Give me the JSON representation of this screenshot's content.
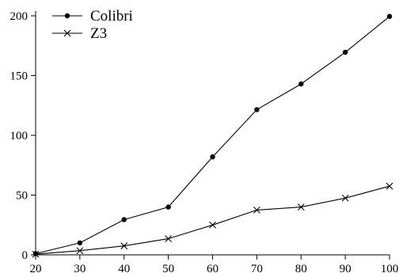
{
  "chart_data": {
    "type": "line",
    "x": [
      20,
      30,
      40,
      50,
      60,
      70,
      80,
      90,
      100
    ],
    "xlim": [
      20,
      100
    ],
    "ylim": [
      0,
      200
    ],
    "xticks": [
      20,
      30,
      40,
      50,
      60,
      70,
      80,
      90,
      100
    ],
    "yticks": [
      0,
      50,
      100,
      150,
      200
    ],
    "grid": false,
    "legend_position": "top-left",
    "series": [
      {
        "name": "Colibri",
        "marker": "dot",
        "color": "#000000",
        "values": [
          1,
          10,
          29.5,
          40,
          82,
          121.5,
          143,
          169.5,
          199.5
        ]
      },
      {
        "name": "Z3",
        "marker": "x",
        "color": "#000000",
        "values": [
          0.5,
          3.5,
          7.5,
          13.5,
          25,
          37.5,
          40,
          47.5,
          57.5
        ]
      }
    ]
  }
}
